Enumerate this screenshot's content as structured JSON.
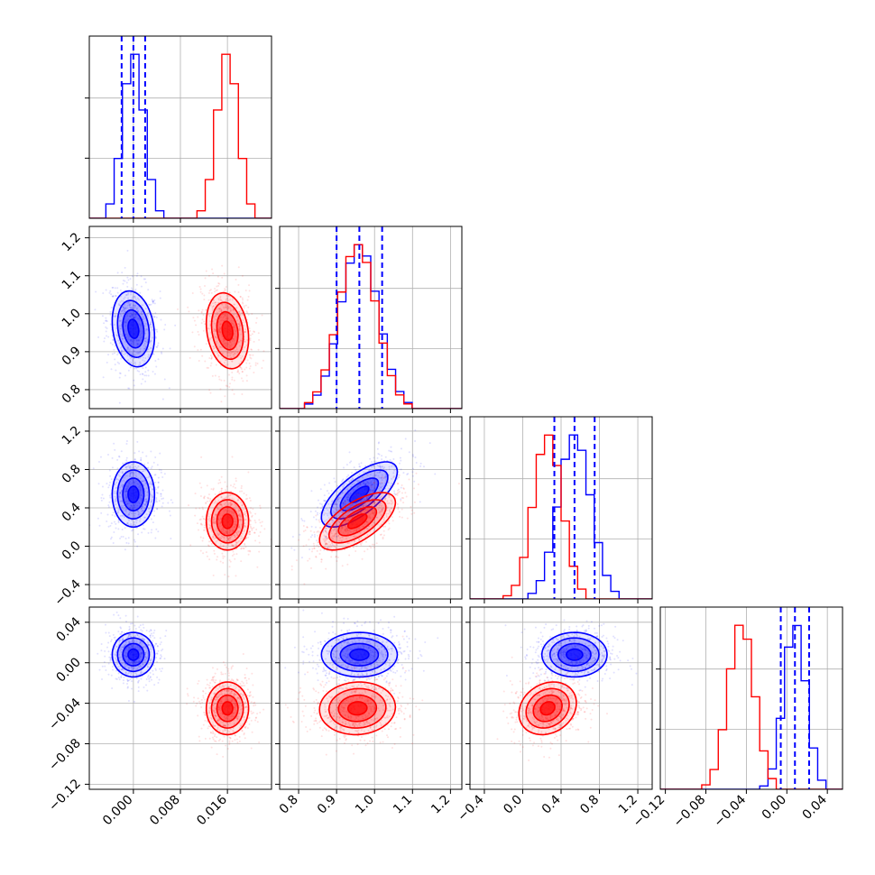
{
  "colors": {
    "series_a": "#0000ff",
    "series_b": "#ff0000",
    "grid": "#b0b0b0",
    "axes": "#000000"
  },
  "chart_data": {
    "type": "scatter",
    "subtype": "corner-plot",
    "n_params": 4,
    "grid": true,
    "series": [
      {
        "color": "#0000ff",
        "means": [
          0.0,
          0.96,
          0.54,
          0.008
        ],
        "stds": [
          0.0018,
          0.05,
          0.17,
          0.011
        ],
        "correlations": [
          [
            0,
            1,
            -0.2
          ],
          [
            1,
            2,
            0.7
          ],
          [
            0,
            2,
            0.0
          ],
          [
            0,
            3,
            0.0
          ],
          [
            1,
            3,
            0.0
          ],
          [
            2,
            3,
            0.0
          ]
        ],
        "quantile_lines": [
          [
            -0.002,
            0.0,
            0.002
          ],
          [
            0.9,
            0.96,
            1.02
          ],
          [
            0.33,
            0.54,
            0.75
          ],
          [
            -0.006,
            0.008,
            0.022
          ]
        ]
      },
      {
        "color": "#ff0000",
        "means": [
          0.016,
          0.955,
          0.26,
          -0.045
        ],
        "stds": [
          0.0018,
          0.05,
          0.15,
          0.013
        ],
        "correlations": [
          [
            0,
            1,
            -0.2
          ],
          [
            1,
            2,
            0.65
          ],
          [
            0,
            2,
            0.0
          ],
          [
            0,
            3,
            0.0
          ],
          [
            1,
            3,
            0.05
          ],
          [
            2,
            3,
            0.2
          ]
        ]
      }
    ],
    "axes": [
      {
        "range": [
          -0.0075,
          0.0235
        ],
        "ticks": [
          0.0,
          0.008,
          0.016
        ],
        "tick_labels": [
          "0.000",
          "0.008",
          "0.016"
        ]
      },
      {
        "range": [
          0.75,
          1.23
        ],
        "ticks": [
          0.8,
          0.9,
          1.0,
          1.1,
          1.2
        ],
        "tick_labels": [
          "0.8",
          "0.9",
          "1.0",
          "1.1",
          "1.2"
        ]
      },
      {
        "range": [
          -0.55,
          1.35
        ],
        "ticks": [
          -0.4,
          0.0,
          0.4,
          0.8,
          1.2
        ],
        "tick_labels": [
          "−0.4",
          "0.0",
          "0.4",
          "0.8",
          "1.2"
        ]
      },
      {
        "range": [
          -0.125,
          0.055
        ],
        "ticks": [
          -0.12,
          -0.08,
          -0.04,
          0.0,
          0.04
        ],
        "tick_labels": [
          "−0.12",
          "−0.08",
          "−0.04",
          "0.00",
          "0.04"
        ]
      }
    ]
  }
}
